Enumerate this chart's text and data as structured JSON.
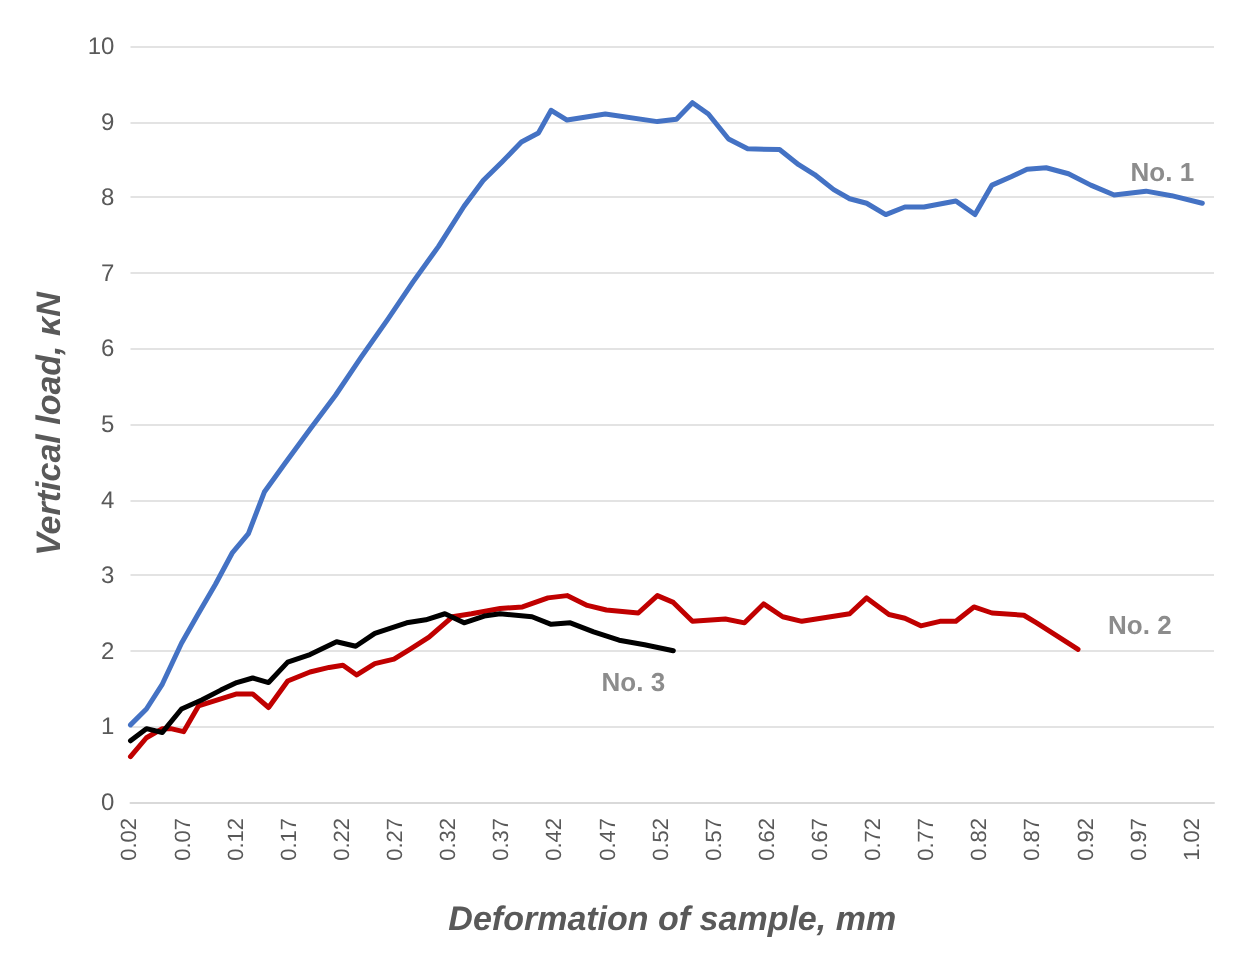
{
  "chart_data": {
    "type": "line",
    "xlabel": "Deformation of sample, mm",
    "ylabel": "Vertical load, κN",
    "xlim": [
      0.02,
      1.04
    ],
    "xticks": [
      0.02,
      0.07,
      0.12,
      0.17,
      0.22,
      0.27,
      0.32,
      0.37,
      0.42,
      0.47,
      0.52,
      0.57,
      0.62,
      0.67,
      0.72,
      0.77,
      0.82,
      0.87,
      0.92,
      0.97,
      1.02
    ],
    "ylim": [
      0,
      10
    ],
    "yticks": [
      0,
      1,
      2,
      3,
      4,
      5,
      6,
      7,
      8,
      9,
      10
    ],
    "grid": "y",
    "legend": false,
    "marker": "none",
    "line_style": "solid",
    "series": [
      {
        "name": "No. 1",
        "color": "#4472c4",
        "x": [
          0.02,
          0.035,
          0.05,
          0.068,
          0.083,
          0.1,
          0.116,
          0.131,
          0.146,
          0.165,
          0.189,
          0.213,
          0.237,
          0.262,
          0.286,
          0.31,
          0.334,
          0.352,
          0.37,
          0.388,
          0.404,
          0.416,
          0.431,
          0.467,
          0.516,
          0.534,
          0.549,
          0.564,
          0.583,
          0.601,
          0.631,
          0.649,
          0.664,
          0.682,
          0.697,
          0.713,
          0.731,
          0.749,
          0.767,
          0.797,
          0.815,
          0.831,
          0.849,
          0.864,
          0.882,
          0.903,
          0.924,
          0.946,
          0.976,
          1.0,
          1.029
        ],
        "values": [
          1.02,
          1.23,
          1.56,
          2.1,
          2.47,
          2.88,
          3.3,
          3.55,
          4.1,
          4.47,
          4.93,
          5.38,
          5.88,
          6.38,
          6.88,
          7.35,
          7.88,
          8.22,
          8.47,
          8.73,
          8.85,
          9.15,
          9.02,
          9.1,
          9.0,
          9.03,
          9.25,
          9.1,
          8.77,
          8.64,
          8.63,
          8.43,
          8.3,
          8.1,
          7.98,
          7.92,
          7.77,
          7.87,
          7.87,
          7.95,
          7.77,
          8.16,
          8.27,
          8.37,
          8.39,
          8.31,
          8.16,
          8.03,
          8.08,
          8.02,
          7.92
        ]
      },
      {
        "name": "No. 2",
        "color": "#c00000",
        "x": [
          0.02,
          0.035,
          0.05,
          0.058,
          0.07,
          0.084,
          0.102,
          0.12,
          0.135,
          0.15,
          0.168,
          0.189,
          0.207,
          0.22,
          0.233,
          0.25,
          0.268,
          0.283,
          0.301,
          0.323,
          0.341,
          0.368,
          0.389,
          0.413,
          0.431,
          0.45,
          0.468,
          0.498,
          0.516,
          0.531,
          0.549,
          0.58,
          0.598,
          0.616,
          0.634,
          0.652,
          0.697,
          0.713,
          0.734,
          0.749,
          0.764,
          0.782,
          0.797,
          0.814,
          0.831,
          0.861,
          0.873,
          0.912
        ],
        "values": [
          0.6,
          0.85,
          0.97,
          0.97,
          0.93,
          1.27,
          1.35,
          1.43,
          1.43,
          1.25,
          1.6,
          1.72,
          1.78,
          1.81,
          1.68,
          1.83,
          1.89,
          2.02,
          2.18,
          2.45,
          2.49,
          2.56,
          2.58,
          2.7,
          2.73,
          2.6,
          2.54,
          2.5,
          2.73,
          2.64,
          2.39,
          2.42,
          2.37,
          2.62,
          2.45,
          2.39,
          2.49,
          2.7,
          2.48,
          2.43,
          2.33,
          2.39,
          2.39,
          2.58,
          2.5,
          2.47,
          2.37,
          2.02
        ]
      },
      {
        "name": "No. 3",
        "color": "#000000",
        "x": [
          0.02,
          0.035,
          0.05,
          0.068,
          0.087,
          0.105,
          0.12,
          0.135,
          0.15,
          0.168,
          0.189,
          0.214,
          0.232,
          0.25,
          0.28,
          0.298,
          0.316,
          0.334,
          0.353,
          0.368,
          0.398,
          0.416,
          0.434,
          0.456,
          0.48,
          0.504,
          0.531
        ],
        "values": [
          0.81,
          0.97,
          0.92,
          1.23,
          1.35,
          1.48,
          1.58,
          1.64,
          1.58,
          1.85,
          1.95,
          2.12,
          2.06,
          2.23,
          2.37,
          2.41,
          2.49,
          2.37,
          2.46,
          2.49,
          2.45,
          2.35,
          2.37,
          2.25,
          2.14,
          2.08,
          2.0
        ]
      }
    ]
  }
}
